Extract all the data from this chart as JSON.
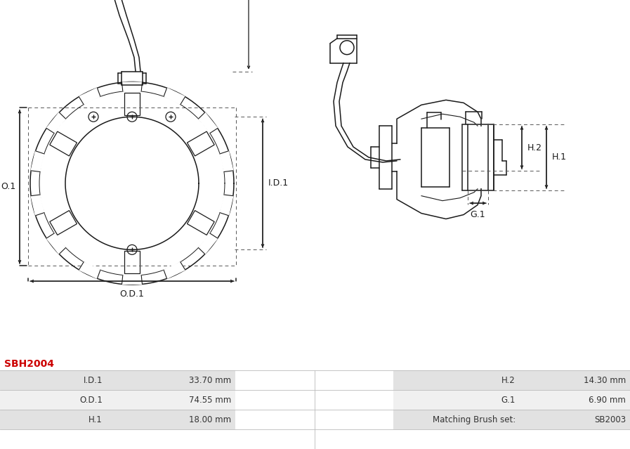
{
  "title": "SBH2004",
  "title_color": "#cc0000",
  "table_rows": [
    {
      "label": "I.D.1",
      "value": "33.70 mm",
      "label2": "H.2",
      "value2": "14.30 mm"
    },
    {
      "label": "O.D.1",
      "value": "74.55 mm",
      "label2": "G.1",
      "value2": "6.90 mm"
    },
    {
      "label": "H.1",
      "value": "18.00 mm",
      "label2": "Matching Brush set:",
      "value2": "SB2003"
    }
  ],
  "row_colors": [
    "#e2e2e2",
    "#f0f0f0"
  ],
  "line_color": "#1a1a1a",
  "font_size_table": 8.5,
  "font_size_title": 10,
  "font_size_dim": 9
}
